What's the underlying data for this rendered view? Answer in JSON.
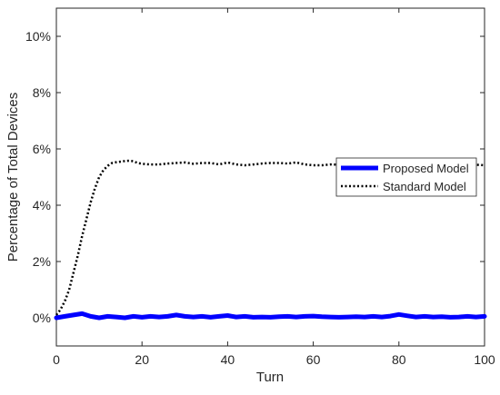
{
  "chart_data": {
    "type": "line",
    "title": "",
    "xlabel": "Turn",
    "ylabel": "Percentage of Total Devices",
    "xlim": [
      0,
      100
    ],
    "ylim": [
      -1,
      11
    ],
    "x_ticks": [
      0,
      20,
      40,
      60,
      80,
      100
    ],
    "x_tick_labels": [
      "0",
      "20",
      "40",
      "60",
      "80",
      "100"
    ],
    "y_ticks": [
      0,
      2,
      4,
      6,
      8,
      10
    ],
    "y_tick_labels": [
      "0%",
      "2%",
      "4%",
      "6%",
      "8%",
      "10%"
    ],
    "grid": false,
    "legend_position": "right",
    "series": [
      {
        "name": "Proposed Model",
        "color": "#0000ff",
        "line_style": "solid",
        "x": [
          0,
          2,
          4,
          6,
          8,
          10,
          12,
          14,
          16,
          18,
          20,
          22,
          24,
          26,
          28,
          30,
          32,
          34,
          36,
          38,
          40,
          42,
          44,
          46,
          48,
          50,
          52,
          54,
          56,
          58,
          60,
          62,
          64,
          66,
          68,
          70,
          72,
          74,
          76,
          78,
          80,
          82,
          84,
          86,
          88,
          90,
          92,
          94,
          96,
          98,
          100
        ],
        "values": [
          0.0,
          0.05,
          0.1,
          0.15,
          0.05,
          0.0,
          0.05,
          0.03,
          0.0,
          0.05,
          0.02,
          0.05,
          0.03,
          0.05,
          0.1,
          0.05,
          0.03,
          0.05,
          0.02,
          0.05,
          0.08,
          0.03,
          0.05,
          0.02,
          0.03,
          0.02,
          0.04,
          0.05,
          0.03,
          0.05,
          0.06,
          0.04,
          0.03,
          0.02,
          0.03,
          0.04,
          0.03,
          0.05,
          0.03,
          0.06,
          0.12,
          0.07,
          0.03,
          0.05,
          0.03,
          0.04,
          0.02,
          0.03,
          0.05,
          0.03,
          0.05
        ]
      },
      {
        "name": "Standard Model",
        "color": "#000000",
        "line_style": "dotted",
        "x": [
          0,
          1,
          2,
          3,
          4,
          5,
          6,
          7,
          8,
          9,
          10,
          11,
          12,
          13,
          14,
          15,
          16,
          17,
          18,
          19,
          20,
          22,
          24,
          26,
          28,
          30,
          32,
          34,
          36,
          38,
          40,
          42,
          44,
          46,
          48,
          50,
          52,
          54,
          56,
          58,
          60,
          62,
          64,
          66,
          68,
          70,
          72,
          74,
          76,
          78,
          80,
          82,
          84,
          86,
          88,
          90,
          92,
          94,
          96,
          98,
          100
        ],
        "values": [
          0.1,
          0.3,
          0.6,
          1.0,
          1.6,
          2.2,
          2.9,
          3.5,
          4.1,
          4.6,
          5.0,
          5.25,
          5.4,
          5.5,
          5.53,
          5.55,
          5.57,
          5.58,
          5.56,
          5.5,
          5.47,
          5.45,
          5.45,
          5.48,
          5.5,
          5.52,
          5.47,
          5.5,
          5.5,
          5.45,
          5.52,
          5.45,
          5.42,
          5.45,
          5.48,
          5.5,
          5.5,
          5.48,
          5.52,
          5.45,
          5.42,
          5.42,
          5.45,
          5.44,
          5.45,
          5.45,
          5.44,
          5.44,
          5.45,
          5.45,
          5.44,
          5.45,
          5.45,
          5.44,
          5.45,
          5.44,
          5.44,
          5.45,
          5.44,
          5.44,
          5.42
        ]
      }
    ]
  }
}
